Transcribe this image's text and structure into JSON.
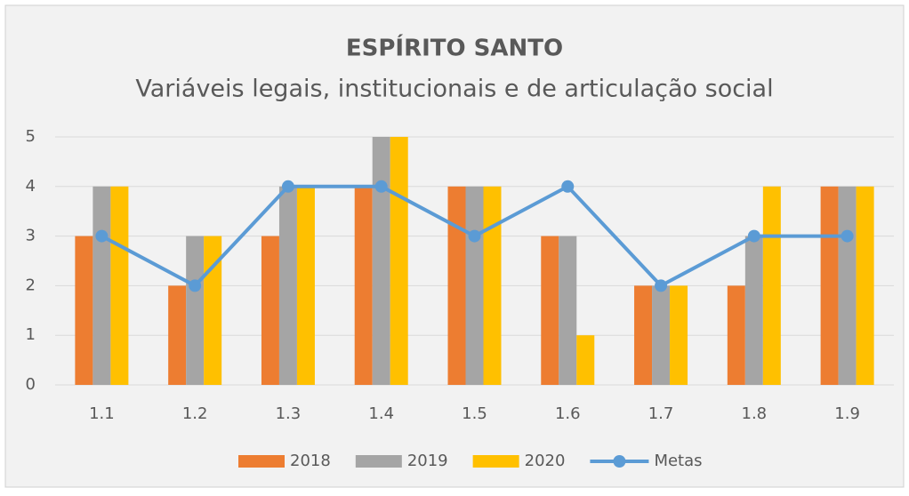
{
  "chart_data": {
    "type": "bar",
    "title": "ESPÍRITO SANTO",
    "subtitle": "Variáveis legais, institucionais e de articulação social",
    "categories": [
      "1.1",
      "1.2",
      "1.3",
      "1.4",
      "1.5",
      "1.6",
      "1.7",
      "1.8",
      "1.9"
    ],
    "series": [
      {
        "name": "2018",
        "color": "#ed7d31",
        "values": [
          3,
          2,
          3,
          4,
          4,
          3,
          2,
          2,
          4
        ]
      },
      {
        "name": "2019",
        "color": "#a5a5a5",
        "values": [
          4,
          3,
          4,
          5,
          4,
          3,
          2,
          3,
          4
        ]
      },
      {
        "name": "2020",
        "color": "#ffc000",
        "values": [
          4,
          3,
          4,
          5,
          4,
          1,
          2,
          4,
          4
        ]
      },
      {
        "name": "Metas",
        "color": "#5b9bd5",
        "type": "line",
        "values": [
          3,
          2,
          4,
          4,
          3,
          4,
          2,
          3,
          3
        ]
      }
    ],
    "ylim": [
      0,
      5
    ],
    "yticks": [
      0,
      1,
      2,
      3,
      4,
      5
    ],
    "grid": true,
    "legend": "bottom"
  }
}
